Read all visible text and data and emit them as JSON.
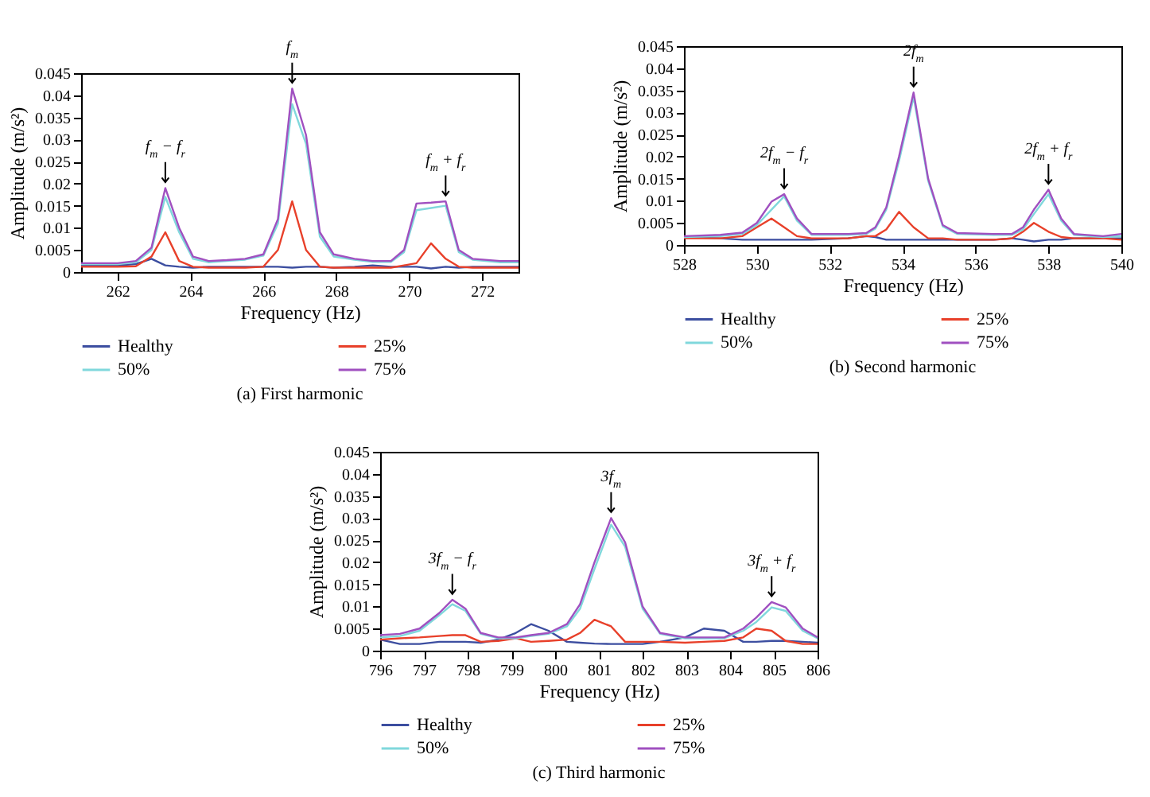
{
  "chart_data": [
    {
      "type": "line",
      "title": "(a)  First harmonic",
      "xlabel": "Frequency (Hz)",
      "ylabel": "Amplitude (m/s²)",
      "legend": "bottom",
      "xlim": [
        261,
        273
      ],
      "xticks": [
        262,
        264,
        266,
        268,
        270,
        272
      ],
      "ylim": [
        0,
        0.045
      ],
      "yticks": [
        0,
        0.005,
        0.01,
        0.015,
        0.02,
        0.025,
        0.03,
        0.035,
        0.04,
        0.045
      ],
      "x": [
        261,
        261.5,
        262,
        262.5,
        262.93,
        263.31,
        263.69,
        264.07,
        264.5,
        265,
        265.5,
        266,
        266.4,
        266.79,
        267.17,
        267.55,
        267.93,
        268.5,
        269,
        269.5,
        269.86,
        270.2,
        270.6,
        271.0,
        271.36,
        271.74,
        272.5,
        273
      ],
      "series": [
        {
          "name": "Healthy",
          "color": "#3c4ea0",
          "values": [
            0.0015,
            0.0015,
            0.0015,
            0.0018,
            0.003,
            0.0015,
            0.0012,
            0.001,
            0.0012,
            0.0012,
            0.0012,
            0.0012,
            0.0012,
            0.001,
            0.0012,
            0.0012,
            0.001,
            0.0012,
            0.0015,
            0.0012,
            0.0012,
            0.0012,
            0.0008,
            0.0012,
            0.001,
            0.0012,
            0.0012,
            0.0012
          ]
        },
        {
          "name": "25%",
          "color": "#e8402a",
          "values": [
            0.0012,
            0.0012,
            0.0012,
            0.0013,
            0.0035,
            0.009,
            0.0025,
            0.0012,
            0.001,
            0.001,
            0.001,
            0.0012,
            0.005,
            0.016,
            0.005,
            0.0012,
            0.001,
            0.001,
            0.001,
            0.001,
            0.0015,
            0.002,
            0.0065,
            0.003,
            0.0012,
            0.001,
            0.001,
            0.001
          ]
        },
        {
          "name": "50%",
          "color": "#80d8dc",
          "values": [
            0.0018,
            0.0018,
            0.0018,
            0.0022,
            0.005,
            0.017,
            0.009,
            0.003,
            0.0022,
            0.0025,
            0.0028,
            0.0037,
            0.011,
            0.038,
            0.029,
            0.008,
            0.0035,
            0.0028,
            0.0023,
            0.0023,
            0.0045,
            0.014,
            0.0145,
            0.015,
            0.0045,
            0.0028,
            0.0022,
            0.0022
          ]
        },
        {
          "name": "75%",
          "color": "#a050c0",
          "values": [
            0.002,
            0.002,
            0.002,
            0.0025,
            0.0055,
            0.019,
            0.01,
            0.0035,
            0.0025,
            0.0027,
            0.003,
            0.004,
            0.012,
            0.0415,
            0.031,
            0.009,
            0.004,
            0.003,
            0.0025,
            0.0025,
            0.005,
            0.0155,
            0.0157,
            0.016,
            0.005,
            0.003,
            0.0025,
            0.0025
          ]
        }
      ],
      "annotations": [
        {
          "text": "f$_{m}$ − f$_{r}$",
          "x": 263.31,
          "y": 0.019
        },
        {
          "text": "f$_{m}$",
          "x": 266.79,
          "y": 0.0415
        },
        {
          "text": "f$_{m}$ + f$_{r}$",
          "x": 271.0,
          "y": 0.016
        }
      ]
    },
    {
      "type": "line",
      "title": "(b)  Second harmonic",
      "xlabel": "Frequency (Hz)",
      "ylabel": "Amplitude (m/s²)",
      "legend": "bottom",
      "xlim": [
        528,
        540
      ],
      "xticks": [
        528,
        530,
        532,
        534,
        536,
        538,
        540
      ],
      "ylim": [
        0,
        0.045
      ],
      "yticks": [
        0,
        0.005,
        0.01,
        0.015,
        0.02,
        0.025,
        0.03,
        0.035,
        0.04,
        0.045
      ],
      "x": [
        528,
        529,
        529.6,
        530.0,
        530.4,
        530.75,
        531.1,
        531.5,
        532.5,
        533.0,
        533.25,
        533.55,
        533.9,
        534.3,
        534.7,
        535.1,
        535.5,
        536.5,
        537.0,
        537.3,
        537.6,
        538.0,
        538.35,
        538.7,
        539.5,
        540
      ],
      "series": [
        {
          "name": "Healthy",
          "color": "#3c4ea0",
          "values": [
            0.0018,
            0.0015,
            0.0012,
            0.0012,
            0.0012,
            0.0012,
            0.0012,
            0.0012,
            0.0015,
            0.002,
            0.0018,
            0.0012,
            0.0012,
            0.0012,
            0.0012,
            0.0012,
            0.0012,
            0.0012,
            0.0015,
            0.0012,
            0.0008,
            0.0012,
            0.0012,
            0.0015,
            0.0015,
            0.0015
          ]
        },
        {
          "name": "25%",
          "color": "#e8402a",
          "values": [
            0.0015,
            0.0015,
            0.002,
            0.004,
            0.006,
            0.004,
            0.002,
            0.0015,
            0.0015,
            0.002,
            0.002,
            0.0035,
            0.0075,
            0.004,
            0.0015,
            0.0015,
            0.0012,
            0.0012,
            0.0015,
            0.003,
            0.005,
            0.003,
            0.0018,
            0.0015,
            0.0015,
            0.0012
          ]
        },
        {
          "name": "50%",
          "color": "#80d8dc",
          "values": [
            0.0018,
            0.002,
            0.0025,
            0.0045,
            0.008,
            0.011,
            0.0055,
            0.0023,
            0.0023,
            0.0025,
            0.0037,
            0.008,
            0.019,
            0.0335,
            0.0145,
            0.0042,
            0.0025,
            0.0023,
            0.0023,
            0.0035,
            0.007,
            0.0115,
            0.0055,
            0.0023,
            0.0018,
            0.002
          ]
        },
        {
          "name": "75%",
          "color": "#a050c0",
          "values": [
            0.002,
            0.0023,
            0.0028,
            0.005,
            0.0098,
            0.0115,
            0.006,
            0.0025,
            0.0025,
            0.0027,
            0.004,
            0.0085,
            0.02,
            0.0345,
            0.015,
            0.0045,
            0.0027,
            0.0025,
            0.0025,
            0.004,
            0.008,
            0.0125,
            0.006,
            0.0025,
            0.002,
            0.0025
          ]
        }
      ],
      "annotations": [
        {
          "text": "2f$_{m}$ − f$_{r}$",
          "x": 530.75,
          "y": 0.0115
        },
        {
          "text": "2f$_{m}$",
          "x": 534.3,
          "y": 0.0345
        },
        {
          "text": "2f$_{m}$ + f$_{r}$",
          "x": 538.0,
          "y": 0.0125
        }
      ]
    },
    {
      "type": "line",
      "title": "(c)  Third harmonic",
      "xlabel": "Frequency (Hz)",
      "ylabel": "Amplitude (m/s²)",
      "legend": "bottom",
      "xlim": [
        796,
        806
      ],
      "xticks": [
        796,
        797,
        798,
        799,
        800,
        801,
        802,
        803,
        804,
        805,
        806
      ],
      "ylim": [
        0,
        0.045
      ],
      "yticks": [
        0,
        0.005,
        0.01,
        0.015,
        0.02,
        0.025,
        0.03,
        0.035,
        0.04,
        0.045
      ],
      "x": [
        796,
        796.45,
        796.9,
        797.35,
        797.65,
        797.95,
        798.3,
        798.7,
        799.1,
        799.45,
        799.85,
        800.27,
        800.57,
        800.9,
        801.28,
        801.6,
        802.0,
        802.4,
        802.97,
        803.4,
        803.87,
        804.3,
        804.6,
        804.95,
        805.27,
        805.66,
        806
      ],
      "series": [
        {
          "name": "Healthy",
          "color": "#3c4ea0",
          "values": [
            0.0025,
            0.0015,
            0.0015,
            0.002,
            0.002,
            0.002,
            0.0018,
            0.0025,
            0.004,
            0.006,
            0.0045,
            0.002,
            0.0018,
            0.0016,
            0.0015,
            0.0015,
            0.0015,
            0.002,
            0.003,
            0.005,
            0.0045,
            0.002,
            0.002,
            0.0022,
            0.0022,
            0.002,
            0.0018
          ]
        },
        {
          "name": "25%",
          "color": "#e8402a",
          "values": [
            0.0025,
            0.0028,
            0.003,
            0.0033,
            0.0035,
            0.0035,
            0.002,
            0.0022,
            0.0028,
            0.002,
            0.0022,
            0.0025,
            0.004,
            0.007,
            0.0055,
            0.002,
            0.002,
            0.002,
            0.0018,
            0.002,
            0.0022,
            0.003,
            0.005,
            0.0045,
            0.0022,
            0.0015,
            0.0015
          ]
        },
        {
          "name": "50%",
          "color": "#80d8dc",
          "values": [
            0.003,
            0.0033,
            0.0045,
            0.008,
            0.0105,
            0.009,
            0.0038,
            0.0028,
            0.0028,
            0.0033,
            0.0038,
            0.0055,
            0.0095,
            0.0185,
            0.0285,
            0.0235,
            0.0095,
            0.0038,
            0.0028,
            0.0028,
            0.0028,
            0.0045,
            0.0065,
            0.0098,
            0.009,
            0.0045,
            0.0028
          ]
        },
        {
          "name": "75%",
          "color": "#a050c0",
          "values": [
            0.0035,
            0.0038,
            0.005,
            0.0085,
            0.0115,
            0.0095,
            0.004,
            0.003,
            0.003,
            0.0035,
            0.004,
            0.006,
            0.0105,
            0.02,
            0.03,
            0.0245,
            0.01,
            0.004,
            0.003,
            0.003,
            0.003,
            0.005,
            0.0075,
            0.011,
            0.0098,
            0.005,
            0.003
          ]
        }
      ],
      "annotations": [
        {
          "text": "3f$_{m}$ − f$_{r}$",
          "x": 797.65,
          "y": 0.0115
        },
        {
          "text": "3f$_{m}$",
          "x": 801.28,
          "y": 0.03
        },
        {
          "text": "3f$_{m}$ + f$_{r}$",
          "x": 804.95,
          "y": 0.011
        }
      ]
    }
  ]
}
